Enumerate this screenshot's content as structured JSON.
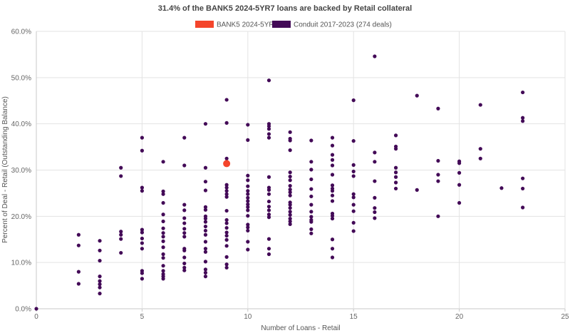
{
  "chart_data": {
    "type": "scatter",
    "title": "31.4% of the BANK5 2024-5YR7 loans are backed by Retail collateral",
    "xlabel": "Number of Loans - Retail",
    "ylabel": "Percent of Deal - Retail (Outstanding Balance)",
    "xlim": [
      0,
      25
    ],
    "ylim": [
      0,
      60
    ],
    "x_ticks": [
      0,
      5,
      10,
      15,
      20,
      25
    ],
    "x_tick_labels": [
      "0",
      "5",
      "10",
      "15",
      "20",
      "25"
    ],
    "y_ticks": [
      0,
      10,
      20,
      30,
      40,
      50,
      60
    ],
    "y_tick_labels": [
      "0.0%",
      "10.0%",
      "20.0%",
      "30.0%",
      "40.0%",
      "50.0%",
      "60.0%"
    ],
    "grid": true,
    "legend_position": "top",
    "series": [
      {
        "name": "BANK5 2024-5YR7",
        "color": "#f4452b",
        "points": [
          [
            9,
            31.4
          ]
        ]
      },
      {
        "name": "Conduit 2017-2023 (274 deals)",
        "color": "#430a57",
        "points": [
          [
            0,
            0.0
          ],
          [
            2,
            16.0
          ],
          [
            2,
            13.7
          ],
          [
            2,
            8.0
          ],
          [
            2,
            5.4
          ],
          [
            3,
            14.7
          ],
          [
            3,
            12.6
          ],
          [
            3,
            10.4
          ],
          [
            3,
            7.0
          ],
          [
            3,
            6.0
          ],
          [
            3,
            5.3
          ],
          [
            3,
            4.6
          ],
          [
            3,
            3.3
          ],
          [
            4,
            30.5
          ],
          [
            4,
            28.7
          ],
          [
            4,
            16.7
          ],
          [
            4,
            16.0
          ],
          [
            4,
            15.1
          ],
          [
            4,
            12.1
          ],
          [
            5,
            37.0
          ],
          [
            5,
            34.2
          ],
          [
            5,
            26.2
          ],
          [
            5,
            25.5
          ],
          [
            5,
            17.1
          ],
          [
            5,
            16.5
          ],
          [
            5,
            15.2
          ],
          [
            5,
            14.2
          ],
          [
            5,
            13.0
          ],
          [
            5,
            8.2
          ],
          [
            5,
            7.7
          ],
          [
            5,
            6.5
          ],
          [
            6,
            31.8
          ],
          [
            6,
            25.4
          ],
          [
            6,
            24.8
          ],
          [
            6,
            22.9
          ],
          [
            6,
            20.4
          ],
          [
            6,
            18.9
          ],
          [
            6,
            17.4
          ],
          [
            6,
            16.4
          ],
          [
            6,
            15.6
          ],
          [
            6,
            14.6
          ],
          [
            6,
            13.3
          ],
          [
            6,
            11.8
          ],
          [
            6,
            11.0
          ],
          [
            6,
            9.3
          ],
          [
            6,
            8.2
          ],
          [
            6,
            7.5
          ],
          [
            6,
            7.0
          ],
          [
            6,
            6.5
          ],
          [
            7,
            37.0
          ],
          [
            7,
            31.0
          ],
          [
            7,
            22.5
          ],
          [
            7,
            21.3
          ],
          [
            7,
            19.6
          ],
          [
            7,
            18.5
          ],
          [
            7,
            17.3
          ],
          [
            7,
            16.4
          ],
          [
            7,
            15.6
          ],
          [
            7,
            13.0
          ],
          [
            7,
            12.6
          ],
          [
            7,
            11.1
          ],
          [
            7,
            9.8
          ],
          [
            7,
            8.9
          ],
          [
            7,
            8.3
          ],
          [
            8,
            40.0
          ],
          [
            8,
            30.5
          ],
          [
            8,
            27.5
          ],
          [
            8,
            25.6
          ],
          [
            8,
            22.0
          ],
          [
            8,
            21.4
          ],
          [
            8,
            20.0
          ],
          [
            8,
            19.5
          ],
          [
            8,
            18.8
          ],
          [
            8,
            17.8
          ],
          [
            8,
            16.9
          ],
          [
            8,
            16.0
          ],
          [
            8,
            14.5
          ],
          [
            8,
            13.0
          ],
          [
            8,
            12.3
          ],
          [
            8,
            10.2
          ],
          [
            8,
            8.5
          ],
          [
            8,
            7.8
          ],
          [
            8,
            7.0
          ],
          [
            9,
            45.2
          ],
          [
            9,
            40.2
          ],
          [
            9,
            32.5
          ],
          [
            9,
            26.8
          ],
          [
            9,
            26.2
          ],
          [
            9,
            25.5
          ],
          [
            9,
            24.8
          ],
          [
            9,
            24.2
          ],
          [
            9,
            21.2
          ],
          [
            9,
            19.2
          ],
          [
            9,
            18.5
          ],
          [
            9,
            17.5
          ],
          [
            9,
            16.5
          ],
          [
            9,
            15.8
          ],
          [
            9,
            14.9
          ],
          [
            9,
            13.6
          ],
          [
            9,
            11.2
          ],
          [
            9,
            9.6
          ],
          [
            9,
            8.9
          ],
          [
            10,
            39.8
          ],
          [
            10,
            36.5
          ],
          [
            10,
            28.8
          ],
          [
            10,
            27.8
          ],
          [
            10,
            26.5
          ],
          [
            10,
            25.5
          ],
          [
            10,
            24.8
          ],
          [
            10,
            24.0
          ],
          [
            10,
            23.3
          ],
          [
            10,
            22.6
          ],
          [
            10,
            22.0
          ],
          [
            10,
            21.3
          ],
          [
            10,
            20.1
          ],
          [
            10,
            18.2
          ],
          [
            10,
            17.6
          ],
          [
            10,
            16.9
          ],
          [
            10,
            14.5
          ],
          [
            10,
            12.8
          ],
          [
            11,
            49.4
          ],
          [
            11,
            40.0
          ],
          [
            11,
            39.5
          ],
          [
            11,
            38.9
          ],
          [
            11,
            37.8
          ],
          [
            11,
            37.0
          ],
          [
            11,
            28.5
          ],
          [
            11,
            26.2
          ],
          [
            11,
            25.7
          ],
          [
            11,
            24.8
          ],
          [
            11,
            23.2
          ],
          [
            11,
            22.1
          ],
          [
            11,
            21.3
          ],
          [
            11,
            20.4
          ],
          [
            11,
            19.8
          ],
          [
            11,
            15.1
          ],
          [
            11,
            13.0
          ],
          [
            11,
            11.8
          ],
          [
            12,
            38.2
          ],
          [
            12,
            36.8
          ],
          [
            12,
            36.4
          ],
          [
            12,
            34.3
          ],
          [
            12,
            29.5
          ],
          [
            12,
            28.6
          ],
          [
            12,
            27.8
          ],
          [
            12,
            26.6
          ],
          [
            12,
            25.8
          ],
          [
            12,
            25.2
          ],
          [
            12,
            24.5
          ],
          [
            12,
            23.0
          ],
          [
            12,
            22.5
          ],
          [
            12,
            21.8
          ],
          [
            12,
            21.0
          ],
          [
            12,
            20.3
          ],
          [
            12,
            19.5
          ],
          [
            12,
            18.9
          ],
          [
            12,
            18.3
          ],
          [
            13,
            36.4
          ],
          [
            13,
            31.8
          ],
          [
            13,
            30.1
          ],
          [
            13,
            28.0
          ],
          [
            13,
            25.9
          ],
          [
            13,
            24.3
          ],
          [
            13,
            22.5
          ],
          [
            13,
            21.0
          ],
          [
            13,
            19.9
          ],
          [
            13,
            19.2
          ],
          [
            13,
            18.8
          ],
          [
            13,
            17.2
          ],
          [
            13,
            16.3
          ],
          [
            14,
            37.0
          ],
          [
            14,
            35.3
          ],
          [
            14,
            33.3
          ],
          [
            14,
            32.2
          ],
          [
            14,
            31.0
          ],
          [
            14,
            29.0
          ],
          [
            14,
            26.7
          ],
          [
            14,
            26.0
          ],
          [
            14,
            25.5
          ],
          [
            14,
            24.5
          ],
          [
            14,
            23.3
          ],
          [
            14,
            20.6
          ],
          [
            14,
            20.1
          ],
          [
            14,
            19.5
          ],
          [
            14,
            15.0
          ],
          [
            14,
            13.0
          ],
          [
            14,
            11.1
          ],
          [
            15,
            45.1
          ],
          [
            15,
            36.3
          ],
          [
            15,
            31.1
          ],
          [
            15,
            29.7
          ],
          [
            15,
            28.7
          ],
          [
            15,
            24.8
          ],
          [
            15,
            24.1
          ],
          [
            15,
            22.5
          ],
          [
            15,
            21.1
          ],
          [
            15,
            18.6
          ],
          [
            15,
            16.8
          ],
          [
            16,
            54.6
          ],
          [
            16,
            33.8
          ],
          [
            16,
            31.8
          ],
          [
            16,
            27.6
          ],
          [
            16,
            24.0
          ],
          [
            16,
            21.8
          ],
          [
            16,
            20.9
          ],
          [
            16,
            19.6
          ],
          [
            17,
            37.5
          ],
          [
            17,
            35.1
          ],
          [
            17,
            34.6
          ],
          [
            17,
            30.5
          ],
          [
            17,
            29.5
          ],
          [
            17,
            28.5
          ],
          [
            17,
            27.3
          ],
          [
            17,
            26.0
          ],
          [
            18,
            46.1
          ],
          [
            18,
            25.7
          ],
          [
            19,
            43.3
          ],
          [
            19,
            32.0
          ],
          [
            19,
            29.0
          ],
          [
            19,
            27.6
          ],
          [
            19,
            20.0
          ],
          [
            20,
            31.9
          ],
          [
            20,
            31.5
          ],
          [
            20,
            29.4
          ],
          [
            20,
            26.8
          ],
          [
            20,
            22.9
          ],
          [
            21,
            44.1
          ],
          [
            21,
            34.6
          ],
          [
            21,
            32.5
          ],
          [
            22,
            26.1
          ],
          [
            23,
            46.8
          ],
          [
            23,
            41.3
          ],
          [
            23,
            40.6
          ],
          [
            23,
            28.2
          ],
          [
            23,
            26.0
          ],
          [
            23,
            21.9
          ]
        ]
      }
    ]
  }
}
